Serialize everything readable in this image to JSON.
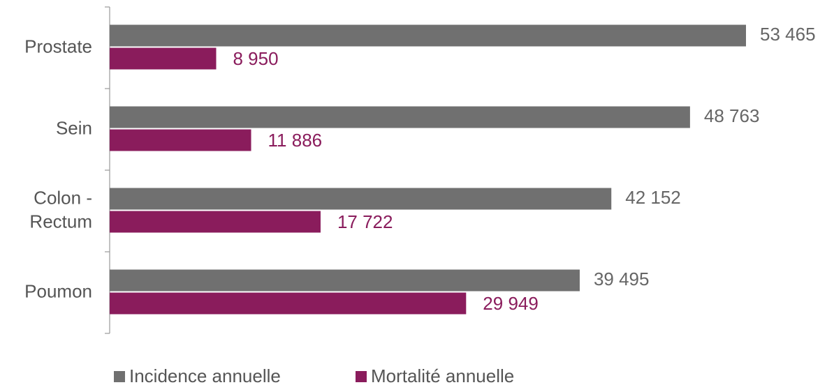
{
  "chart_data": {
    "type": "bar",
    "orientation": "horizontal",
    "categories": [
      "Prostate",
      "Sein",
      "Colon -\nRectum",
      "Poumon"
    ],
    "series": [
      {
        "name": "Incidence annuelle",
        "color": "#707070",
        "label_color": "#666666",
        "values": [
          53465,
          48763,
          42152,
          39495
        ],
        "value_labels": [
          "53 465",
          "48 763",
          "42 152",
          "39 495"
        ]
      },
      {
        "name": "Mortalité annuelle",
        "color": "#8a1c5c",
        "label_color": "#8a1c5c",
        "values": [
          8950,
          11886,
          17722,
          29949
        ],
        "value_labels": [
          "8 950",
          "11 886",
          "17 722",
          "29 949"
        ]
      }
    ],
    "legend": "bottom"
  }
}
